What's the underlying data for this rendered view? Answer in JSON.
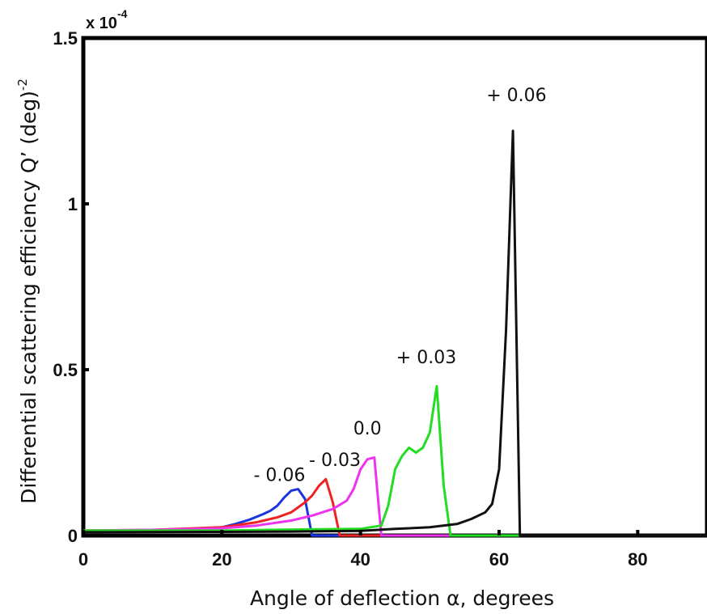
{
  "chart_data": {
    "type": "line",
    "title": "",
    "xlabel": "Angle of deflection α,  degrees",
    "ylabel_main": "Differential scattering efficiency Q’ (deg)",
    "ylabel_sup": "-2",
    "y_multiplier_base": "x 10",
    "y_multiplier_exp": "-4",
    "xlim": [
      0,
      90
    ],
    "ylim": [
      0,
      1.5
    ],
    "xticks": [
      0,
      20,
      40,
      60,
      80
    ],
    "xtick_labels": [
      "0",
      "20",
      "40",
      "60",
      "80"
    ],
    "yticks": [
      0,
      0.5,
      1,
      1.5
    ],
    "ytick_labels": [
      "0",
      "0.5",
      "1",
      "1.5"
    ],
    "grid": false,
    "series": [
      {
        "name": "- 0.06",
        "color": "#1a35e0",
        "x": [
          0,
          10,
          15,
          20,
          22,
          24,
          26,
          27,
          28,
          29,
          30,
          31,
          32,
          33,
          35,
          90
        ],
        "y": [
          0.012,
          0.015,
          0.017,
          0.025,
          0.035,
          0.048,
          0.065,
          0.075,
          0.09,
          0.115,
          0.135,
          0.14,
          0.11,
          0.0,
          0.0,
          0.0
        ]
      },
      {
        "name": "- 0.03",
        "color": "#ee2222",
        "x": [
          0,
          10,
          20,
          25,
          28,
          30,
          31,
          32,
          33,
          34,
          35,
          36,
          37,
          40,
          90
        ],
        "y": [
          0.015,
          0.017,
          0.025,
          0.04,
          0.055,
          0.07,
          0.085,
          0.1,
          0.12,
          0.15,
          0.17,
          0.1,
          0.0,
          0.0,
          0.0
        ]
      },
      {
        "name": "0.0",
        "color": "#ee33ee",
        "x": [
          0,
          10,
          20,
          25,
          30,
          33,
          36,
          38,
          39,
          40,
          41,
          42,
          43,
          45,
          90
        ],
        "y": [
          0.015,
          0.017,
          0.022,
          0.03,
          0.045,
          0.06,
          0.08,
          0.105,
          0.14,
          0.2,
          0.23,
          0.235,
          0.0,
          0.0,
          0.0
        ]
      },
      {
        "name": "+ 0.03",
        "color": "#22dd22",
        "x": [
          0,
          20,
          30,
          40,
          43,
          44,
          45,
          46,
          47,
          48,
          49,
          50,
          51,
          52,
          53,
          55,
          90
        ],
        "y": [
          0.015,
          0.015,
          0.018,
          0.02,
          0.03,
          0.09,
          0.2,
          0.24,
          0.265,
          0.25,
          0.265,
          0.31,
          0.45,
          0.15,
          0.0,
          0.0,
          0.0
        ]
      },
      {
        "name": "+ 0.06",
        "color": "#111111",
        "x": [
          0,
          20,
          30,
          40,
          45,
          50,
          54,
          56,
          58,
          59,
          60,
          61,
          62,
          63,
          65,
          90
        ],
        "y": [
          0.01,
          0.011,
          0.012,
          0.014,
          0.02,
          0.025,
          0.035,
          0.05,
          0.07,
          0.095,
          0.2,
          0.62,
          1.22,
          0.0,
          0.0,
          0.0
        ]
      }
    ],
    "annotations": [
      {
        "text": "- 0.06",
        "x": 28.3,
        "y": 0.165
      },
      {
        "text": "- 0.03",
        "x": 36.3,
        "y": 0.21
      },
      {
        "text": "0.0",
        "x": 41.0,
        "y": 0.305
      },
      {
        "text": "+ 0.03",
        "x": 49.5,
        "y": 0.52
      },
      {
        "text": "+ 0.06",
        "x": 62.5,
        "y": 1.31
      }
    ]
  }
}
